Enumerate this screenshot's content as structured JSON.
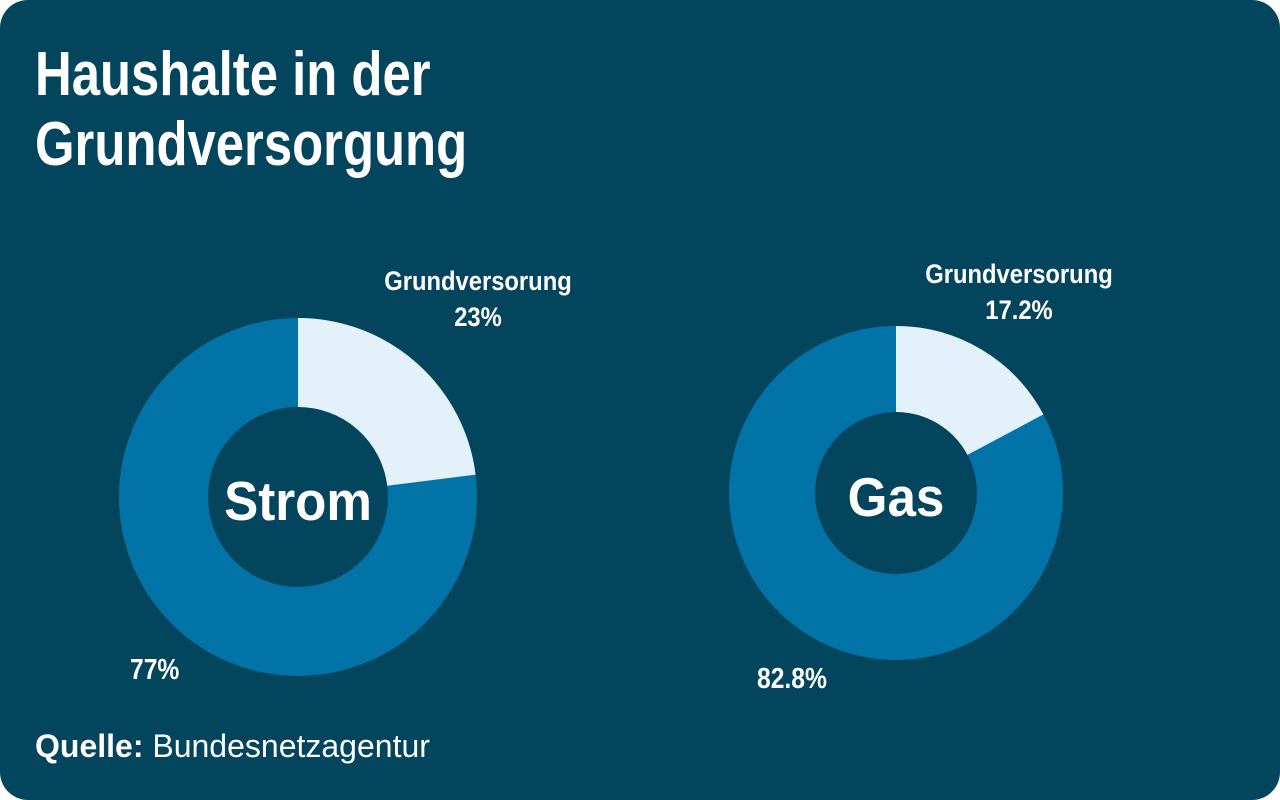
{
  "card": {
    "background_color": "#04455E",
    "outside_color": "#FFFFFF"
  },
  "title": {
    "text": "Haushalte in der Grundversorgung",
    "line1": "Haushalte in der",
    "line2": "Grundversorgung"
  },
  "source": {
    "label": "Quelle:",
    "name": "Bundesnetzagentur"
  },
  "chart_data": [
    {
      "type": "pie",
      "subtype": "donut",
      "center_label": "Strom",
      "unit": "%",
      "start_angle_deg": 0,
      "direction": "clockwise",
      "slices": [
        {
          "label": "Grundversorung",
          "value": 23,
          "display": "23%",
          "color": "#E3F2FA"
        },
        {
          "label": "",
          "value": 77,
          "display": "77%",
          "color": "#0273A7"
        }
      ]
    },
    {
      "type": "pie",
      "subtype": "donut",
      "center_label": "Gas",
      "unit": "%",
      "start_angle_deg": 0,
      "direction": "clockwise",
      "slices": [
        {
          "label": "Grundversorung",
          "value": 17.2,
          "display": "17.2%",
          "color": "#E3F2FA"
        },
        {
          "label": "",
          "value": 82.8,
          "display": "82.8%",
          "color": "#0273A7"
        }
      ]
    }
  ]
}
